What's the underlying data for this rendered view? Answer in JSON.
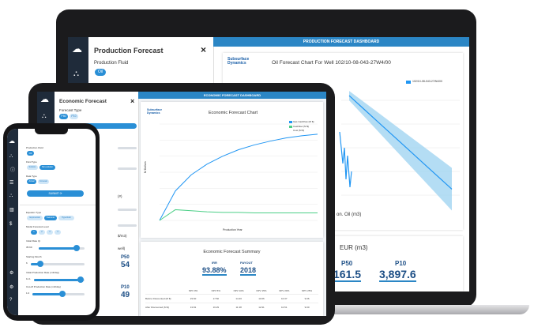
{
  "laptop": {
    "panel": {
      "title": "Production Forecast",
      "close_icon": "×",
      "field_label": "Production Fluid",
      "fluid_value": "Oil"
    },
    "dashboard": {
      "banner": "PRODUCTION FORECAST DASHBOARD",
      "logo_line1": "Subsurface",
      "logo_line2": "Dynamics",
      "chart_title": "Oil Forecast Chart For Well 102/10-08-043-27W4/00",
      "legend_label": "102/10-08-043-27W4/00",
      "axis_fragment": "on. Oil (m3)",
      "eur_title_fragment": "EUR (m3)",
      "eur": [
        {
          "label": "P50",
          "value": "161.5"
        },
        {
          "label": "P10",
          "value": "3,897.6"
        }
      ]
    }
  },
  "tablet": {
    "panel": {
      "title": "Economic Forecast",
      "close_icon": "×",
      "forecast_type_label": "Forecast Type",
      "forecast_type_options": [
        "P50",
        "P10"
      ],
      "side_fragments": [
        "(#)",
        "$/m3)",
        "well)"
      ],
      "side_numbers": [
        "P50",
        "54",
        "P10",
        "49"
      ]
    },
    "dashboard": {
      "banner": "ECONOMIC FORECAST DASHBOARD",
      "logo_line1": "Subsurface",
      "logo_line2": "Dynamics",
      "chart_title": "Economic Forecast Chart",
      "ylabel": "M Dollars",
      "xlabel": "Production Year",
      "legend": [
        "Gas Cashflow (M $)",
        "Cashflow (M $)",
        "Cost (M $)"
      ],
      "summary_title": "Economic Forecast Summary",
      "irr_label": "IRR",
      "irr_value": "93.88%",
      "payout_label": "PAYOUT",
      "payout_value": "2018",
      "table_headers": [
        "",
        "NPV 0%",
        "NPV 5%",
        "NPV 10%",
        "NPV 15%",
        "NPV 20%",
        "NPV 25%"
      ],
      "table_rows": [
        [
          "Before Discounted (M $)",
          "23.60",
          "17.50",
          "14.40",
          "13.06",
          "10.37",
          "9.06"
        ],
        [
          "After Discounted (M $)",
          "13.81",
          "16.29",
          "11.38",
          "12.91",
          "10.51",
          "9.00"
        ]
      ]
    }
  },
  "phone": {
    "production_fluid_label": "Production Fluid",
    "fluid_value": "Oil",
    "fluid_type_label": "Fluid Type",
    "fluid_type_options": [
      "Solution",
      "Non-solution"
    ],
    "data_type_label": "Data Type",
    "data_type_options": [
      "Actual",
      "Forecast"
    ],
    "submit_label": "SUBMIT",
    "equation_type_label": "Equation Type",
    "equation_options": [
      "Exponential",
      "Harmonic",
      "Hyperbolic"
    ],
    "model_label": "Model Forecast Level",
    "model_options": [
      "1",
      "2",
      "3",
      "4"
    ],
    "initial_rate_label": "Initial Rate Qi",
    "initial_rate_value": "35.69",
    "decline_label": "Starting Month",
    "decline_value": "6",
    "init_prod_label": "Initial Production Rate (m3/day)",
    "init_prod_value": "11.1",
    "cutoff_label": "Cut-off Production Rate (m3/day)",
    "cutoff_value": "1.0"
  },
  "colors": {
    "primary": "#2a8fd6",
    "sidebar": "#1f2b3a",
    "banner": "#2b86c5",
    "forecast_line": "#2196f3",
    "green_line": "#4ccf87",
    "band": "#9bd2f0"
  },
  "chart_data": [
    {
      "type": "line",
      "title": "Economic Forecast Chart",
      "ylabel": "M Dollars",
      "xlabel": "Production Year",
      "x": [
        0,
        1,
        2,
        3,
        4,
        5,
        6,
        7,
        8,
        9,
        10
      ],
      "series": [
        {
          "name": "Gas Cashflow (M $)",
          "values": [
            0,
            55,
            85,
            105,
            120,
            132,
            141,
            148,
            154,
            158,
            161
          ]
        },
        {
          "name": "Cashflow (M $)",
          "values": [
            0,
            20,
            18,
            16,
            15,
            15,
            14,
            14,
            14,
            14,
            14
          ]
        }
      ]
    },
    {
      "type": "line",
      "title": "Oil Forecast Chart For Well 102/10-08-043-27W4/00",
      "series": [
        {
          "name": "102/10-08-043-27W4/00",
          "values": [
            100,
            88,
            76,
            64,
            52,
            40,
            28,
            16
          ]
        }
      ]
    }
  ]
}
